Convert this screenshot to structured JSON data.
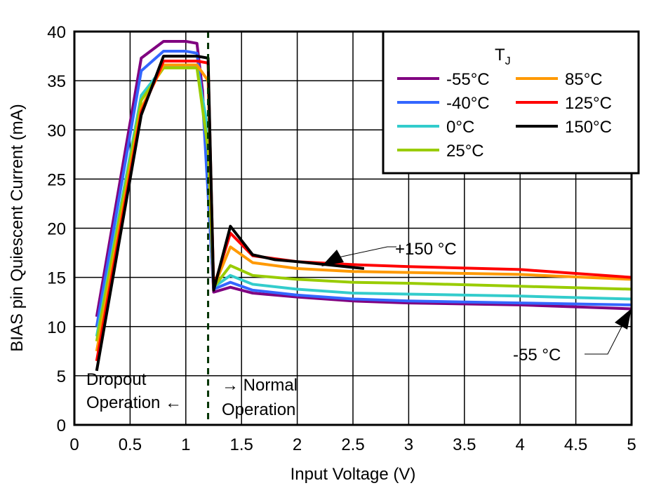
{
  "chart_data": {
    "type": "line",
    "xlabel": "Input Voltage (V)",
    "ylabel": "BIAS pin Quiescent Current (mA)",
    "xlim": [
      0,
      5
    ],
    "ylim": [
      0,
      40
    ],
    "xticks": [
      "0",
      "0.5",
      "1",
      "1.5",
      "2",
      "2.5",
      "3",
      "3.5",
      "4",
      "4.5",
      "5"
    ],
    "yticks": [
      "0",
      "5",
      "10",
      "15",
      "20",
      "25",
      "30",
      "35",
      "40"
    ],
    "grid": true,
    "legend": {
      "title": "T",
      "title_sub": "J",
      "placement": "top-right"
    },
    "series": [
      {
        "name": "-55°C",
        "color": "#800080",
        "x": [
          0.2,
          0.6,
          0.8,
          1.0,
          1.1,
          1.15,
          1.25,
          1.4,
          1.6,
          2,
          2.5,
          3,
          4,
          5
        ],
        "y": [
          11,
          37.3,
          39,
          39,
          38.8,
          34,
          13.5,
          14,
          13.4,
          13,
          12.6,
          12.4,
          12.2,
          11.8
        ]
      },
      {
        "name": "-40°C",
        "color": "#3366ff",
        "x": [
          0.2,
          0.6,
          0.8,
          1.0,
          1.1,
          1.15,
          1.25,
          1.4,
          1.6,
          2,
          2.5,
          3,
          4,
          5
        ],
        "y": [
          10,
          36,
          38,
          38,
          37.8,
          33,
          13.8,
          14.5,
          13.7,
          13.2,
          12.8,
          12.6,
          12.4,
          12.2
        ]
      },
      {
        "name": "0°C",
        "color": "#33cccc",
        "x": [
          0.2,
          0.6,
          0.8,
          1.0,
          1.1,
          1.2,
          1.25,
          1.4,
          1.6,
          2,
          2.5,
          3,
          4,
          5
        ],
        "y": [
          9,
          33.5,
          36.4,
          36.4,
          36.4,
          30,
          14,
          15.2,
          14.3,
          13.8,
          13.4,
          13.3,
          13.1,
          12.8
        ]
      },
      {
        "name": "25°C",
        "color": "#99cc00",
        "x": [
          0.2,
          0.6,
          0.8,
          1.0,
          1.1,
          1.2,
          1.25,
          1.4,
          1.6,
          2,
          2.5,
          3,
          4,
          5
        ],
        "y": [
          8.5,
          33,
          36.3,
          36.3,
          36.3,
          28,
          14,
          16.2,
          15.2,
          14.8,
          14.5,
          14.4,
          14.1,
          13.8
        ]
      },
      {
        "name": "85°C",
        "color": "#ff9900",
        "x": [
          0.2,
          0.6,
          0.8,
          1.0,
          1.1,
          1.2,
          1.25,
          1.4,
          1.6,
          2,
          2.5,
          3,
          4,
          5
        ],
        "y": [
          7.5,
          32.2,
          36.6,
          36.6,
          36.6,
          35,
          14,
          18.1,
          16.5,
          15.9,
          15.6,
          15.5,
          15.3,
          14.8
        ]
      },
      {
        "name": "125°C",
        "color": "#ff0000",
        "x": [
          0.2,
          0.6,
          0.8,
          1.0,
          1.1,
          1.2,
          1.25,
          1.4,
          1.6,
          2,
          2.5,
          3,
          4,
          5
        ],
        "y": [
          6.5,
          31.8,
          37,
          37,
          37,
          36.8,
          14,
          19.5,
          17.2,
          16.6,
          16.3,
          16.1,
          15.8,
          15
        ]
      },
      {
        "name": "150°C",
        "color": "#000000",
        "x": [
          0.2,
          0.6,
          0.8,
          1.0,
          1.1,
          1.2,
          1.25,
          1.4,
          1.6,
          1.8,
          2,
          2.6
        ],
        "y": [
          5.5,
          31.5,
          37.5,
          37.5,
          37.5,
          37.3,
          13.7,
          20.2,
          17.3,
          16.8,
          16.6,
          15.9
        ]
      }
    ],
    "annotations": {
      "hot": "+150 °C",
      "cold": "-55 °C",
      "dropout": [
        "Dropout",
        "Operation ←"
      ],
      "normal": [
        "→ Normal",
        "Operation"
      ]
    },
    "boundary_x": 1.2
  }
}
